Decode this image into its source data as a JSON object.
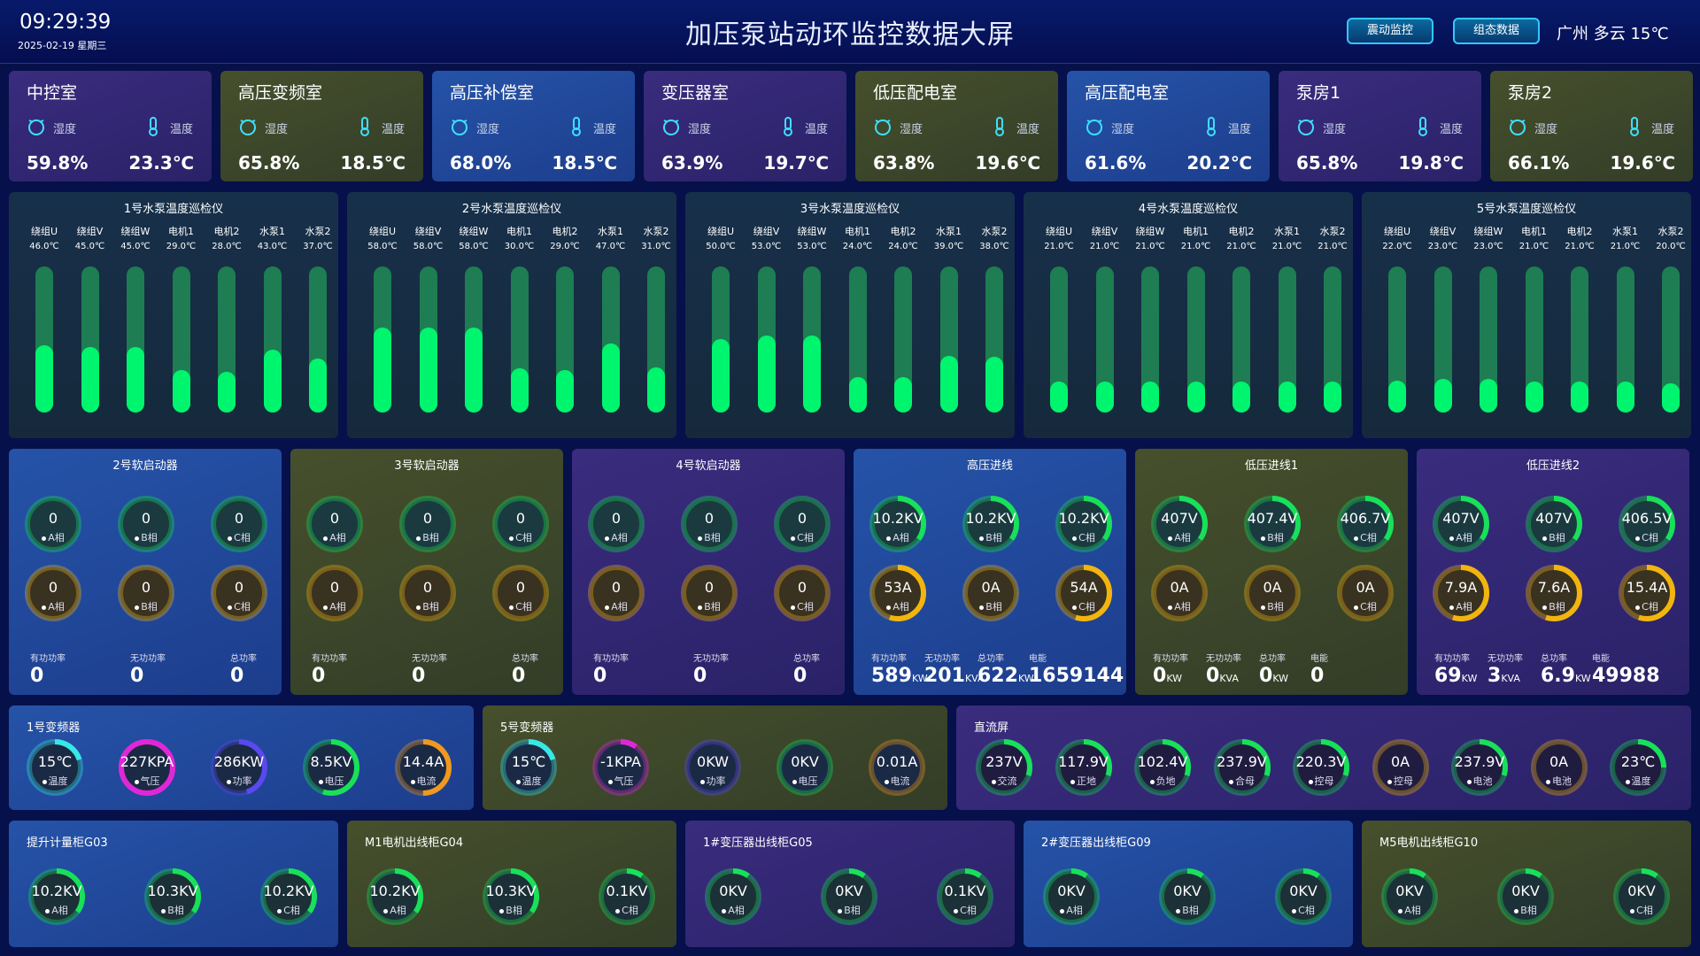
{
  "header": {
    "time": "09:29:39",
    "date": "2025-02-19 星期三",
    "title": "加压泵站动环监控数据大屏",
    "btn_vibration": "震动监控",
    "btn_config": "组态数据",
    "weather": "广州 多云 15℃"
  },
  "labels": {
    "humidity": "湿度",
    "temperature": "温度",
    "active_power": "有功功率",
    "reactive_power": "无功功率",
    "total_power": "总功率",
    "energy": "电能"
  },
  "rooms": [
    {
      "name": "中控室",
      "humidity": "59.8%",
      "temperature": "23.3℃"
    },
    {
      "name": "高压变频室",
      "humidity": "65.8%",
      "temperature": "18.5℃"
    },
    {
      "name": "高压补偿室",
      "humidity": "68.0%",
      "temperature": "18.5℃"
    },
    {
      "name": "变压器室",
      "humidity": "63.9%",
      "temperature": "19.7℃"
    },
    {
      "name": "低压配电室",
      "humidity": "63.8%",
      "temperature": "19.6℃"
    },
    {
      "name": "高压配电室",
      "humidity": "61.6%",
      "temperature": "20.2℃"
    },
    {
      "name": "泵房1",
      "humidity": "65.8%",
      "temperature": "19.8℃"
    },
    {
      "name": "泵房2",
      "humidity": "66.1%",
      "temperature": "19.6℃"
    }
  ],
  "sensor_names": [
    "绕组U",
    "绕组V",
    "绕组W",
    "电机1",
    "电机2",
    "水泵1",
    "水泵2"
  ],
  "pump_panels": [
    {
      "title": "1号水泵温度巡检仪",
      "values": [
        "46.0℃",
        "45.0℃",
        "45.0℃",
        "29.0℃",
        "28.0℃",
        "43.0℃",
        "37.0℃"
      ],
      "levels": [
        46,
        45,
        45,
        29,
        28,
        43,
        37
      ]
    },
    {
      "title": "2号水泵温度巡检仪",
      "values": [
        "58.0℃",
        "58.0℃",
        "58.0℃",
        "30.0℃",
        "29.0℃",
        "47.0℃",
        "31.0℃"
      ],
      "levels": [
        58,
        58,
        58,
        30,
        29,
        47,
        31
      ]
    },
    {
      "title": "3号水泵温度巡检仪",
      "values": [
        "50.0℃",
        "53.0℃",
        "53.0℃",
        "24.0℃",
        "24.0℃",
        "39.0℃",
        "38.0℃"
      ],
      "levels": [
        50,
        53,
        53,
        24,
        24,
        39,
        38
      ]
    },
    {
      "title": "4号水泵温度巡检仪",
      "values": [
        "21.0℃",
        "21.0℃",
        "21.0℃",
        "21.0℃",
        "21.0℃",
        "21.0℃",
        "21.0℃"
      ],
      "levels": [
        21,
        21,
        21,
        21,
        21,
        21,
        21
      ]
    },
    {
      "title": "5号水泵温度巡检仪",
      "values": [
        "22.0℃",
        "23.0℃",
        "23.0℃",
        "21.0℃",
        "21.0℃",
        "21.0℃",
        "20.0℃"
      ],
      "levels": [
        22,
        23,
        23,
        21,
        21,
        21,
        20
      ]
    }
  ],
  "feeders": [
    {
      "title": "2号软启动器",
      "v": [
        "0",
        "0",
        "0"
      ],
      "vl": [
        "A相",
        "B相",
        "C相"
      ],
      "c": [
        "0",
        "0",
        "0"
      ],
      "cl": [
        "A相",
        "B相",
        "C相"
      ],
      "active": "0",
      "active_unit": "",
      "reactive": "0",
      "reactive_unit": "",
      "total": "0",
      "total_unit": "",
      "energy": ""
    },
    {
      "title": "3号软启动器",
      "v": [
        "0",
        "0",
        "0"
      ],
      "vl": [
        "A相",
        "B相",
        "C相"
      ],
      "c": [
        "0",
        "0",
        "0"
      ],
      "cl": [
        "A相",
        "B相",
        "C相"
      ],
      "active": "0",
      "active_unit": "",
      "reactive": "0",
      "reactive_unit": "",
      "total": "0",
      "total_unit": "",
      "energy": ""
    },
    {
      "title": "4号软启动器",
      "v": [
        "0",
        "0",
        "0"
      ],
      "vl": [
        "A相",
        "B相",
        "C相"
      ],
      "c": [
        "0",
        "0",
        "0"
      ],
      "cl": [
        "A相",
        "B相",
        "C相"
      ],
      "active": "0",
      "active_unit": "",
      "reactive": "0",
      "reactive_unit": "",
      "total": "0",
      "total_unit": "",
      "energy": ""
    },
    {
      "title": "高压进线",
      "v": [
        "10.2KV",
        "10.2KV",
        "10.2KV"
      ],
      "vl": [
        "A相",
        "B相",
        "C相"
      ],
      "c": [
        "53A",
        "0A",
        "54A"
      ],
      "cl": [
        "A相",
        "B相",
        "C相"
      ],
      "active": "589",
      "active_unit": "KW",
      "reactive": "201",
      "reactive_unit": "KVA",
      "total": "622",
      "total_unit": "KW",
      "energy": "1659144"
    },
    {
      "title": "低压进线1",
      "v": [
        "407V",
        "407.4V",
        "406.7V"
      ],
      "vl": [
        "A相",
        "B相",
        "C相"
      ],
      "c": [
        "0A",
        "0A",
        "0A"
      ],
      "cl": [
        "A相",
        "B相",
        "C相"
      ],
      "active": "0",
      "active_unit": "KW",
      "reactive": "0",
      "reactive_unit": "KVA",
      "total": "0",
      "total_unit": "KW",
      "energy": "0"
    },
    {
      "title": "低压进线2",
      "v": [
        "407V",
        "407V",
        "406.5V"
      ],
      "vl": [
        "A相",
        "B相",
        "C相"
      ],
      "c": [
        "7.9A",
        "7.6A",
        "15.4A"
      ],
      "cl": [
        "A相",
        "B相",
        "C相"
      ],
      "active": "69",
      "active_unit": "KW",
      "reactive": "3",
      "reactive_unit": "KVA",
      "total": "6.9",
      "total_unit": "KW",
      "energy": "49988"
    }
  ],
  "vfd": [
    {
      "title": "1号变频器",
      "gauges": [
        {
          "v": "15℃",
          "l": "温度"
        },
        {
          "v": "227KPA",
          "l": "气压"
        },
        {
          "v": "286KW",
          "l": "功率"
        },
        {
          "v": "8.5KV",
          "l": "电压"
        },
        {
          "v": "14.4A",
          "l": "电流"
        }
      ]
    },
    {
      "title": "5号变频器",
      "gauges": [
        {
          "v": "15℃",
          "l": "温度"
        },
        {
          "v": "-1KPA",
          "l": "气压"
        },
        {
          "v": "0KW",
          "l": "功率"
        },
        {
          "v": "0KV",
          "l": "电压"
        },
        {
          "v": "0.01A",
          "l": "电流"
        }
      ]
    }
  ],
  "dc": {
    "title": "直流屏",
    "gauges": [
      {
        "v": "237V",
        "l": "交流"
      },
      {
        "v": "117.9V",
        "l": "正地"
      },
      {
        "v": "102.4V",
        "l": "负地"
      },
      {
        "v": "237.9V",
        "l": "合母"
      },
      {
        "v": "220.3V",
        "l": "控母"
      },
      {
        "v": "0A",
        "l": "控母"
      },
      {
        "v": "237.9V",
        "l": "电池"
      },
      {
        "v": "0A",
        "l": "电池"
      },
      {
        "v": "23℃",
        "l": "温度"
      }
    ]
  },
  "cabinets": [
    {
      "title": "提升计量柜G03",
      "gauges": [
        {
          "v": "10.2KV",
          "l": "A相"
        },
        {
          "v": "10.3KV",
          "l": "B相"
        },
        {
          "v": "10.2KV",
          "l": "C相"
        }
      ]
    },
    {
      "title": "M1电机出线柜G04",
      "gauges": [
        {
          "v": "10.2KV",
          "l": "A相"
        },
        {
          "v": "10.3KV",
          "l": "B相"
        },
        {
          "v": "0.1KV",
          "l": "C相"
        }
      ]
    },
    {
      "title": "1#变压器出线柜G05",
      "gauges": [
        {
          "v": "0KV",
          "l": "A相"
        },
        {
          "v": "0KV",
          "l": "B相"
        },
        {
          "v": "0.1KV",
          "l": "C相"
        }
      ]
    },
    {
      "title": "2#变压器出线柜G09",
      "gauges": [
        {
          "v": "0KV",
          "l": "A相"
        },
        {
          "v": "0KV",
          "l": "B相"
        },
        {
          "v": "0KV",
          "l": "C相"
        }
      ]
    },
    {
      "title": "M5电机出线柜G10",
      "gauges": [
        {
          "v": "0KV",
          "l": "A相"
        },
        {
          "v": "0KV",
          "l": "B相"
        },
        {
          "v": "0KV",
          "l": "C相"
        }
      ]
    }
  ],
  "colors": {
    "green": "#18e05a",
    "yellow": "#f2b50f",
    "magenta": "#e027d8",
    "indigo": "#5a48f0",
    "cyan": "#38e8e8",
    "orange": "#f09820"
  }
}
